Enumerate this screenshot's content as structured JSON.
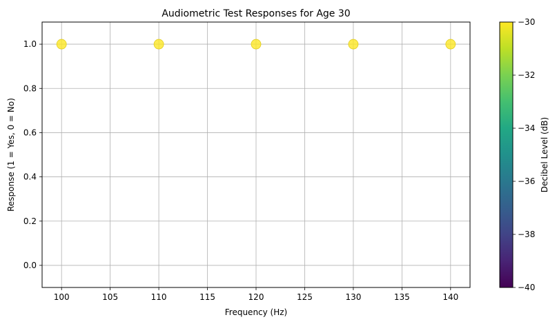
{
  "chart_data": {
    "type": "scatter",
    "title": "Audiometric Test Responses for Age 30",
    "xlabel": "Frequency (Hz)",
    "ylabel": "Response (1 = Yes, 0 = No)",
    "xlim": [
      98,
      142
    ],
    "ylim": [
      -0.1,
      1.1
    ],
    "xticks": [
      "100",
      "105",
      "110",
      "115",
      "120",
      "125",
      "130",
      "135",
      "140"
    ],
    "yticks": [
      "0.0",
      "0.2",
      "0.4",
      "0.6",
      "0.8",
      "1.0"
    ],
    "grid": true,
    "x": [
      100,
      110,
      120,
      130,
      140
    ],
    "y": [
      1,
      1,
      1,
      1,
      1
    ],
    "color_values": [
      -30,
      -30,
      -30,
      -30,
      -30
    ],
    "colorbar": {
      "label": "Decibel Level (dB)",
      "range": [
        -40,
        -30
      ],
      "ticks": [
        "−40",
        "−38",
        "−36",
        "−34",
        "−32",
        "−30"
      ],
      "colormap": "viridis"
    },
    "point_color": "#fde725"
  }
}
